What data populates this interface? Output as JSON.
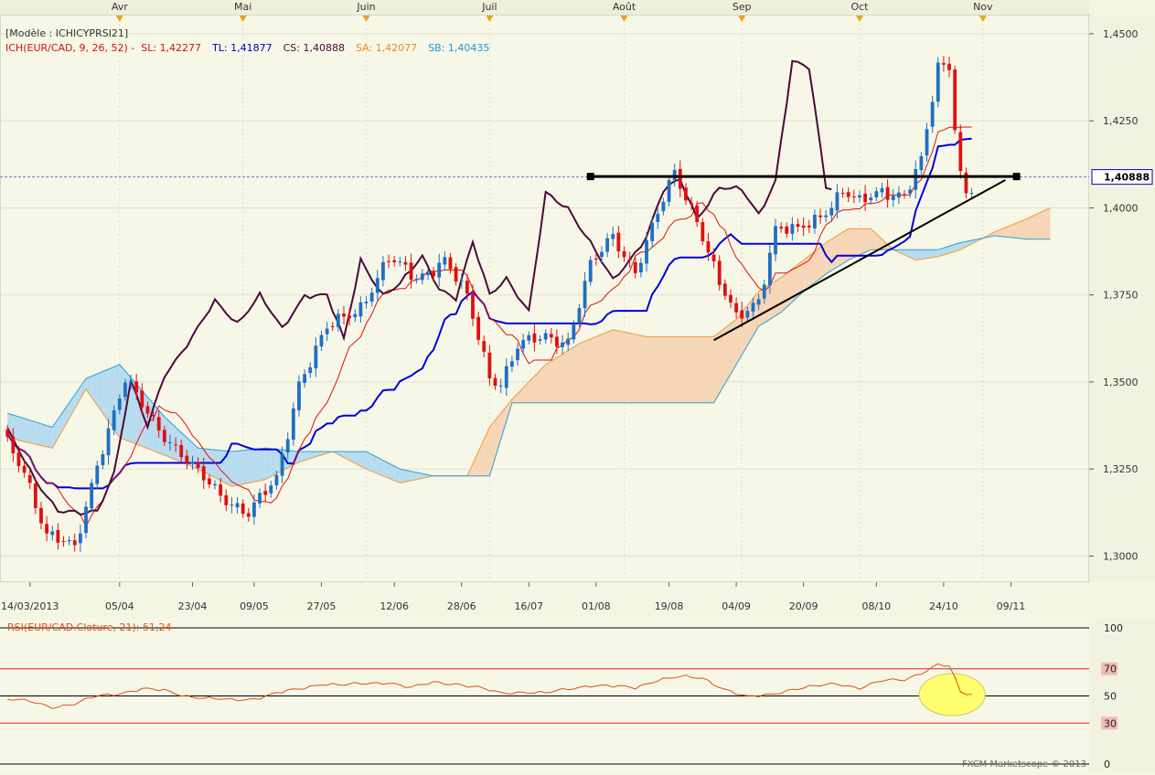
{
  "header": {
    "template": "[Modèle : ICHICYPRSI21]",
    "ichimoku_label": "ICH(EUR/CAD, 9, 26, 52) -",
    "sl": "SL: 1,42277",
    "tl": "TL: 1,41877",
    "cs": "CS: 1,40888",
    "sa": "SA: 1,42077",
    "sb": "SB: 1,40435"
  },
  "rsi_header": "RSI(EUR/CAD.Cloture, 21): 51,24",
  "watermark": "FXCM Marketscope © 2013",
  "colors": {
    "bull": "#1f6fc4",
    "bear": "#e01010",
    "tenkan": "#e01010",
    "kijun": "#0000d8",
    "chikou": "#4a0a3c",
    "span_a": "#f09a3a",
    "span_b": "#2aa0d8",
    "cloud_bull": "#b8dcef",
    "cloud_bear": "#f6d6b6",
    "rsi": "#e05010",
    "highlight": "#ffff70"
  },
  "chart_data": [
    {
      "type": "candlestick",
      "symbol": "EUR/CAD",
      "ylim": [
        1.2925,
        1.4555
      ],
      "y_ticks": [
        "1,4500",
        "1,4250",
        "1,4000",
        "1,3750",
        "1,3500",
        "1,3250",
        "1,3000"
      ],
      "y_tick_values": [
        1.45,
        1.425,
        1.4,
        1.375,
        1.35,
        1.325,
        1.3
      ],
      "current_price": "1,40888",
      "current_price_value": 1.40888,
      "months_top": [
        "Avr",
        "Mai",
        "Juin",
        "Juil",
        "Août",
        "Sep",
        "Oct",
        "Nov"
      ],
      "month_index": [
        20,
        42,
        64,
        86,
        110,
        131,
        152,
        174
      ],
      "x_ticks": [
        "14/03/2013",
        "05/04",
        "23/04",
        "09/05",
        "27/05",
        "12/06",
        "28/06",
        "16/07",
        "01/08",
        "19/08",
        "04/09",
        "20/09",
        "08/10",
        "24/10",
        "09/11"
      ],
      "x_tick_index": [
        4,
        20,
        33,
        44,
        56,
        69,
        81,
        93,
        105,
        118,
        130,
        142,
        155,
        167,
        179
      ],
      "last_index": 172,
      "anchors": [
        [
          0,
          1.332
        ],
        [
          3,
          1.325
        ],
        [
          7,
          1.306
        ],
        [
          12,
          1.302
        ],
        [
          16,
          1.327
        ],
        [
          21,
          1.35
        ],
        [
          28,
          1.335
        ],
        [
          33,
          1.325
        ],
        [
          38,
          1.318
        ],
        [
          43,
          1.312
        ],
        [
          48,
          1.322
        ],
        [
          52,
          1.35
        ],
        [
          57,
          1.365
        ],
        [
          63,
          1.372
        ],
        [
          68,
          1.385
        ],
        [
          73,
          1.38
        ],
        [
          78,
          1.385
        ],
        [
          82,
          1.374
        ],
        [
          86,
          1.352
        ],
        [
          88,
          1.35
        ],
        [
          91,
          1.36
        ],
        [
          96,
          1.363
        ],
        [
          100,
          1.362
        ],
        [
          104,
          1.383
        ],
        [
          108,
          1.392
        ],
        [
          112,
          1.382
        ],
        [
          116,
          1.398
        ],
        [
          119,
          1.41
        ],
        [
          123,
          1.397
        ],
        [
          127,
          1.378
        ],
        [
          130,
          1.368
        ],
        [
          134,
          1.374
        ],
        [
          137,
          1.394
        ],
        [
          141,
          1.393
        ],
        [
          145,
          1.398
        ],
        [
          149,
          1.405
        ],
        [
          152,
          1.401
        ],
        [
          156,
          1.405
        ],
        [
          160,
          1.404
        ],
        [
          163,
          1.413
        ],
        [
          166,
          1.44
        ],
        [
          168,
          1.441
        ],
        [
          169,
          1.424
        ],
        [
          170,
          1.41
        ],
        [
          171,
          1.405
        ],
        [
          172,
          1.406
        ]
      ],
      "chikou_anchors": [
        [
          0,
          1.336
        ],
        [
          5,
          1.322
        ],
        [
          9,
          1.313
        ],
        [
          13,
          1.312
        ],
        [
          16,
          1.313
        ],
        [
          19,
          1.324
        ],
        [
          22,
          1.35
        ],
        [
          25,
          1.337
        ],
        [
          28,
          1.352
        ],
        [
          33,
          1.363
        ],
        [
          37,
          1.373
        ],
        [
          41,
          1.367
        ],
        [
          45,
          1.375
        ],
        [
          49,
          1.365
        ],
        [
          53,
          1.375
        ],
        [
          57,
          1.375
        ],
        [
          60,
          1.362
        ],
        [
          63,
          1.385
        ],
        [
          67,
          1.375
        ],
        [
          70,
          1.378
        ],
        [
          74,
          1.386
        ],
        [
          77,
          1.377
        ],
        [
          80,
          1.374
        ],
        [
          83,
          1.39
        ],
        [
          86,
          1.375
        ],
        [
          89,
          1.38
        ],
        [
          93,
          1.37
        ],
        [
          96,
          1.404
        ],
        [
          100,
          1.4
        ],
        [
          104,
          1.39
        ],
        [
          108,
          1.379
        ],
        [
          111,
          1.385
        ],
        [
          114,
          1.392
        ],
        [
          117,
          1.405
        ],
        [
          120,
          1.408
        ],
        [
          123,
          1.397
        ],
        [
          127,
          1.406
        ],
        [
          131,
          1.405
        ],
        [
          134,
          1.398
        ],
        [
          137,
          1.408
        ],
        [
          140,
          1.442
        ],
        [
          143,
          1.44
        ],
        [
          146,
          1.406
        ],
        [
          147,
          1.406
        ]
      ],
      "cloud_a_anchors": [
        [
          0,
          1.334
        ],
        [
          8,
          1.331
        ],
        [
          14,
          1.348
        ],
        [
          20,
          1.334
        ],
        [
          28,
          1.329
        ],
        [
          34,
          1.325
        ],
        [
          40,
          1.32
        ],
        [
          46,
          1.322
        ],
        [
          52,
          1.327
        ],
        [
          58,
          1.33
        ],
        [
          64,
          1.325
        ],
        [
          70,
          1.321
        ],
        [
          76,
          1.323
        ],
        [
          82,
          1.323
        ],
        [
          86,
          1.337
        ],
        [
          90,
          1.345
        ],
        [
          96,
          1.355
        ],
        [
          102,
          1.361
        ],
        [
          108,
          1.365
        ],
        [
          114,
          1.363
        ],
        [
          120,
          1.363
        ],
        [
          126,
          1.363
        ],
        [
          130,
          1.368
        ],
        [
          134,
          1.376
        ],
        [
          138,
          1.38
        ],
        [
          142,
          1.385
        ],
        [
          146,
          1.39
        ],
        [
          150,
          1.394
        ],
        [
          154,
          1.394
        ],
        [
          158,
          1.388
        ],
        [
          162,
          1.385
        ],
        [
          166,
          1.386
        ],
        [
          170,
          1.388
        ],
        [
          176,
          1.393
        ],
        [
          182,
          1.397
        ],
        [
          186,
          1.4
        ]
      ],
      "cloud_b_anchors": [
        [
          0,
          1.341
        ],
        [
          8,
          1.337
        ],
        [
          14,
          1.351
        ],
        [
          20,
          1.355
        ],
        [
          28,
          1.34
        ],
        [
          34,
          1.331
        ],
        [
          40,
          1.33
        ],
        [
          46,
          1.331
        ],
        [
          52,
          1.33
        ],
        [
          58,
          1.33
        ],
        [
          64,
          1.33
        ],
        [
          70,
          1.325
        ],
        [
          76,
          1.323
        ],
        [
          82,
          1.323
        ],
        [
          86,
          1.323
        ],
        [
          90,
          1.344
        ],
        [
          96,
          1.344
        ],
        [
          102,
          1.344
        ],
        [
          108,
          1.344
        ],
        [
          114,
          1.344
        ],
        [
          120,
          1.344
        ],
        [
          126,
          1.344
        ],
        [
          130,
          1.355
        ],
        [
          134,
          1.366
        ],
        [
          138,
          1.37
        ],
        [
          142,
          1.376
        ],
        [
          146,
          1.381
        ],
        [
          150,
          1.385
        ],
        [
          154,
          1.388
        ],
        [
          158,
          1.388
        ],
        [
          162,
          1.388
        ],
        [
          166,
          1.388
        ],
        [
          170,
          1.39
        ],
        [
          176,
          1.392
        ],
        [
          182,
          1.391
        ],
        [
          186,
          1.391
        ]
      ],
      "cloud_end_index": 186,
      "resistance_line": {
        "from": [
          104,
          1.409
        ],
        "to": [
          180,
          1.409
        ]
      },
      "support_line": {
        "from": [
          126,
          1.362
        ],
        "to": [
          178,
          1.408
        ]
      }
    },
    {
      "type": "line",
      "name": "RSI(EUR/CAD.Cloture, 21)",
      "ylim": [
        0,
        100
      ],
      "levels": [
        "100",
        "70",
        "50",
        "30",
        "0"
      ],
      "level_values": [
        100,
        70,
        50,
        30,
        0
      ],
      "last_value": 51.24,
      "values": [
        [
          0,
          47.5
        ],
        [
          4,
          46
        ],
        [
          8,
          42
        ],
        [
          12,
          44
        ],
        [
          16,
          50
        ],
        [
          20,
          52
        ],
        [
          24,
          55
        ],
        [
          28,
          54
        ],
        [
          32,
          50
        ],
        [
          36,
          48
        ],
        [
          40,
          47
        ],
        [
          44,
          48
        ],
        [
          48,
          52
        ],
        [
          52,
          55
        ],
        [
          56,
          59
        ],
        [
          60,
          58
        ],
        [
          64,
          59
        ],
        [
          68,
          60
        ],
        [
          72,
          56
        ],
        [
          76,
          60
        ],
        [
          80,
          59
        ],
        [
          84,
          56
        ],
        [
          88,
          52
        ],
        [
          92,
          53
        ],
        [
          96,
          52
        ],
        [
          100,
          55
        ],
        [
          104,
          58
        ],
        [
          108,
          57
        ],
        [
          112,
          56
        ],
        [
          116,
          62
        ],
        [
          120,
          64
        ],
        [
          124,
          63
        ],
        [
          128,
          55
        ],
        [
          132,
          49
        ],
        [
          136,
          51
        ],
        [
          140,
          55
        ],
        [
          144,
          57
        ],
        [
          148,
          59
        ],
        [
          152,
          56
        ],
        [
          156,
          61
        ],
        [
          160,
          62
        ],
        [
          163,
          67
        ],
        [
          166,
          73
        ],
        [
          168,
          72
        ],
        [
          169,
          64
        ],
        [
          170,
          53
        ],
        [
          171,
          51
        ],
        [
          172,
          51.24
        ]
      ],
      "highlight_index": 168.5,
      "highlight_value": 51
    }
  ]
}
